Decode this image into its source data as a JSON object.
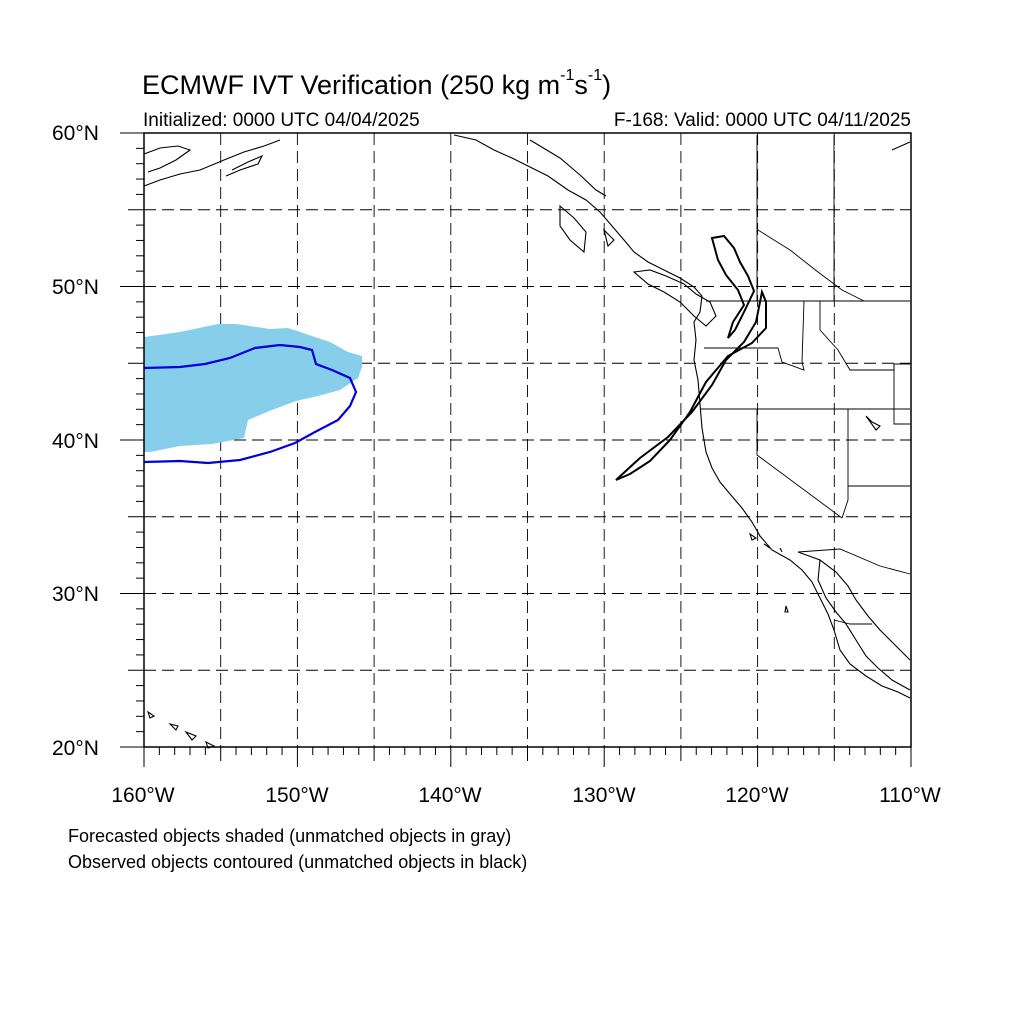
{
  "title": {
    "prefix": "ECMWF IVT Verification (250 kg m",
    "exp1": "-1",
    "mid": "s",
    "exp2": "-1",
    "suffix": ")"
  },
  "initialized": "Initialized: 0000 UTC 04/04/2025",
  "valid": "F-168: Valid: 0000 UTC 04/11/2025",
  "lat_labels": [
    "60°N",
    "50°N",
    "40°N",
    "30°N",
    "20°N"
  ],
  "lon_labels": [
    "160°W",
    "150°W",
    "140°W",
    "130°W",
    "120°W",
    "110°W"
  ],
  "notes": [
    "Forecasted objects shaded (unmatched objects in gray)",
    "Observed objects contoured (unmatched objects in black)"
  ],
  "map_extent": {
    "lon": [
      -160,
      -110
    ],
    "lat": [
      20,
      60
    ]
  },
  "colors": {
    "forecast_matched_fill": "#87ceeb",
    "observed_matched_contour": "#0000dd",
    "observed_unmatched_contour": "#000000"
  }
}
